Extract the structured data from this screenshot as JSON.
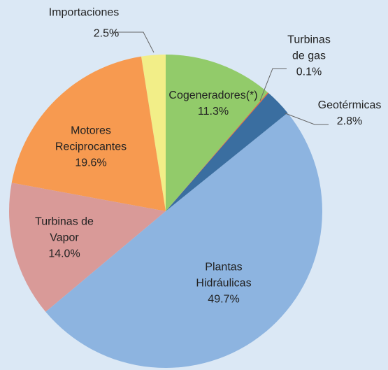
{
  "chart_data": {
    "type": "pie",
    "categories": [
      "Cogeneradores(*)",
      "Turbinas\nde gas",
      "Geotérmicas",
      "Plantas\nHidráulicas",
      "Turbinas de\nVapor",
      "Motores\nReciprocantes",
      "Importaciones"
    ],
    "values": [
      11.3,
      0.1,
      2.8,
      49.7,
      14.0,
      19.6,
      2.5
    ],
    "value_labels": [
      "11.3%",
      "0.1%",
      "2.8%",
      "49.7%",
      "14.0%",
      "19.6%",
      "2.5%"
    ],
    "colors": [
      "#92cb6a",
      "#e8603a",
      "#3a6ea0",
      "#8db4e0",
      "#d99a98",
      "#f79a50",
      "#f2ee88"
    ]
  }
}
